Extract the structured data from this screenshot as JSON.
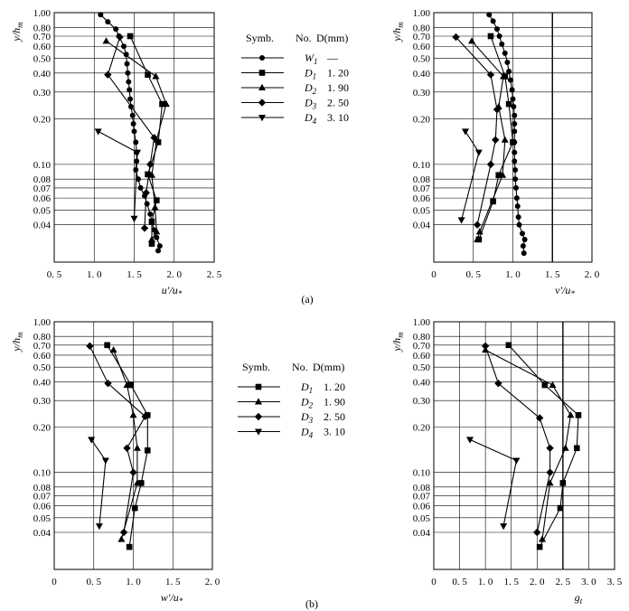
{
  "captions": {
    "a": "(a)",
    "b": "(b)"
  },
  "legend_a": {
    "header_symb": "Symb.",
    "header_no": "No.",
    "header_d": "D(mm)",
    "rows": [
      {
        "symbol": "circle",
        "name": "W",
        "sub": "1",
        "value": "—"
      },
      {
        "symbol": "square",
        "name": "D",
        "sub": "1",
        "value": "1. 20"
      },
      {
        "symbol": "triangle-up",
        "name": "D",
        "sub": "2",
        "value": "1. 90"
      },
      {
        "symbol": "diamond",
        "name": "D",
        "sub": "3",
        "value": "2. 50"
      },
      {
        "symbol": "triangle-down",
        "name": "D",
        "sub": "4",
        "value": "3. 10"
      }
    ]
  },
  "legend_b": {
    "header_symb": "Symb.",
    "header_no": "No.",
    "header_d": "D(mm)",
    "rows": [
      {
        "symbol": "square",
        "name": "D",
        "sub": "1",
        "value": "1. 20"
      },
      {
        "symbol": "triangle-up",
        "name": "D",
        "sub": "2",
        "value": "1. 90"
      },
      {
        "symbol": "diamond",
        "name": "D",
        "sub": "3",
        "value": "2. 50"
      },
      {
        "symbol": "triangle-down",
        "name": "D",
        "sub": "4",
        "value": "3. 10"
      }
    ]
  },
  "chart_data": [
    {
      "type": "line",
      "panel": "a-left",
      "xlabel": "u'/u*",
      "ylabel": "y/hm",
      "xlim": [
        0.5,
        2.5
      ],
      "xscale": "linear",
      "yscale": "log",
      "xticks": [
        "0. 5",
        "1. 0",
        "1. 5",
        "2. 0",
        "2. 5"
      ],
      "yticks": [
        "1.00",
        "0.80",
        "0.70",
        "0.60",
        "0.50",
        "0.40",
        "0.30",
        "0.20",
        "0.10",
        "0.08",
        "0.07",
        "0.06",
        "0.05",
        "0.04"
      ],
      "series": [
        {
          "name": "W1",
          "symbol": "circle",
          "points": [
            [
              1.08,
              0.97
            ],
            [
              1.17,
              0.87
            ],
            [
              1.27,
              0.78
            ],
            [
              1.31,
              0.7
            ],
            [
              1.37,
              0.6
            ],
            [
              1.4,
              0.53
            ],
            [
              1.41,
              0.46
            ],
            [
              1.42,
              0.4
            ],
            [
              1.43,
              0.35
            ],
            [
              1.44,
              0.31
            ],
            [
              1.45,
              0.27
            ],
            [
              1.46,
              0.24
            ],
            [
              1.48,
              0.21
            ],
            [
              1.49,
              0.185
            ],
            [
              1.5,
              0.165
            ],
            [
              1.52,
              0.14
            ],
            [
              1.53,
              0.12
            ],
            [
              1.53,
              0.105
            ],
            [
              1.52,
              0.092
            ],
            [
              1.55,
              0.08
            ],
            [
              1.58,
              0.07
            ],
            [
              1.63,
              0.062
            ],
            [
              1.66,
              0.055
            ],
            [
              1.7,
              0.047
            ],
            [
              1.72,
              0.042
            ],
            [
              1.75,
              0.037
            ],
            [
              1.78,
              0.033
            ],
            [
              1.82,
              0.029
            ],
            [
              1.8,
              0.027
            ]
          ]
        },
        {
          "name": "D1",
          "symbol": "square",
          "points": [
            [
              1.45,
              0.7
            ],
            [
              1.67,
              0.39
            ],
            [
              1.85,
              0.25
            ],
            [
              1.8,
              0.14
            ],
            [
              1.67,
              0.086
            ],
            [
              1.78,
              0.058
            ],
            [
              1.72,
              0.042
            ],
            [
              1.72,
              0.03
            ]
          ]
        },
        {
          "name": "D2",
          "symbol": "triangle-up",
          "points": [
            [
              1.15,
              0.65
            ],
            [
              1.77,
              0.38
            ],
            [
              1.9,
              0.25
            ],
            [
              1.78,
              0.145
            ],
            [
              1.72,
              0.085
            ],
            [
              1.76,
              0.052
            ],
            [
              1.78,
              0.036
            ],
            [
              1.72,
              0.032
            ]
          ]
        },
        {
          "name": "D3",
          "symbol": "diamond",
          "points": [
            [
              1.32,
              0.69
            ],
            [
              1.17,
              0.39
            ],
            [
              1.75,
              0.15
            ],
            [
              1.7,
              0.1
            ],
            [
              1.65,
              0.065
            ],
            [
              1.63,
              0.038
            ]
          ]
        },
        {
          "name": "D4",
          "symbol": "triangle-down",
          "points": [
            [
              1.05,
              0.165
            ],
            [
              1.54,
              0.12
            ],
            [
              1.5,
              0.044
            ]
          ]
        }
      ]
    },
    {
      "type": "line",
      "panel": "a-right",
      "xlabel": "v'/u*",
      "ylabel": "y/hm",
      "xlim": [
        0.0,
        2.0
      ],
      "xscale": "linear",
      "yscale": "log",
      "xticks": [
        "0",
        "0. 5",
        "1. 0",
        "1. 5",
        "2. 0"
      ],
      "yticks": [
        "1.00",
        "0.80",
        "0.70",
        "0.60",
        "0.50",
        "0.40",
        "0.30",
        "0.20",
        "0.10",
        "0.08",
        "0.07",
        "0.06",
        "0.05",
        "0.04"
      ],
      "series": [
        {
          "name": "W1",
          "symbol": "circle",
          "points": [
            [
              0.7,
              0.97
            ],
            [
              0.75,
              0.88
            ],
            [
              0.8,
              0.78
            ],
            [
              0.83,
              0.7
            ],
            [
              0.86,
              0.62
            ],
            [
              0.9,
              0.54
            ],
            [
              0.93,
              0.47
            ],
            [
              0.95,
              0.41
            ],
            [
              0.97,
              0.36
            ],
            [
              0.99,
              0.31
            ],
            [
              1.0,
              0.27
            ],
            [
              1.01,
              0.24
            ],
            [
              1.02,
              0.21
            ],
            [
              1.02,
              0.185
            ],
            [
              1.02,
              0.165
            ],
            [
              1.02,
              0.14
            ],
            [
              1.02,
              0.12
            ],
            [
              1.02,
              0.105
            ],
            [
              1.03,
              0.092
            ],
            [
              1.03,
              0.08
            ],
            [
              1.04,
              0.07
            ],
            [
              1.05,
              0.06
            ],
            [
              1.06,
              0.053
            ],
            [
              1.07,
              0.045
            ],
            [
              1.08,
              0.04
            ],
            [
              1.12,
              0.035
            ],
            [
              1.15,
              0.032
            ],
            [
              1.13,
              0.029
            ],
            [
              1.14,
              0.026
            ]
          ]
        },
        {
          "name": "D1",
          "symbol": "square",
          "points": [
            [
              0.72,
              0.7
            ],
            [
              0.9,
              0.38
            ],
            [
              0.95,
              0.25
            ],
            [
              1.0,
              0.14
            ],
            [
              0.82,
              0.085
            ],
            [
              0.75,
              0.057
            ],
            [
              0.57,
              0.032
            ]
          ]
        },
        {
          "name": "D2",
          "symbol": "triangle-up",
          "points": [
            [
              0.48,
              0.65
            ],
            [
              0.88,
              0.38
            ],
            [
              0.82,
              0.24
            ],
            [
              0.9,
              0.145
            ],
            [
              0.87,
              0.085
            ],
            [
              0.58,
              0.036
            ],
            [
              0.55,
              0.032
            ]
          ]
        },
        {
          "name": "D3",
          "symbol": "diamond",
          "points": [
            [
              0.28,
              0.69
            ],
            [
              0.72,
              0.39
            ],
            [
              0.8,
              0.23
            ],
            [
              0.78,
              0.145
            ],
            [
              0.72,
              0.1
            ],
            [
              0.55,
              0.04
            ]
          ]
        },
        {
          "name": "D4",
          "symbol": "triangle-down",
          "points": [
            [
              0.4,
              0.165
            ],
            [
              0.57,
              0.12
            ],
            [
              0.35,
              0.043
            ]
          ]
        }
      ]
    },
    {
      "type": "line",
      "panel": "b-left",
      "xlabel": "w'/u*",
      "ylabel": "y/hm",
      "xlim": [
        0.0,
        2.0
      ],
      "xscale": "linear",
      "yscale": "log",
      "xticks": [
        "0",
        "0. 5",
        "1. 0",
        "1. 5",
        "2. 0"
      ],
      "yticks": [
        "1.00",
        "0.80",
        "0.70",
        "0.60",
        "0.50",
        "0.40",
        "0.30",
        "0.20",
        "0.10",
        "0.08",
        "0.07",
        "0.06",
        "0.05",
        "0.04"
      ],
      "series": [
        {
          "name": "D1",
          "symbol": "square",
          "points": [
            [
              0.67,
              0.7
            ],
            [
              0.97,
              0.38
            ],
            [
              1.18,
              0.24
            ],
            [
              1.18,
              0.14
            ],
            [
              1.1,
              0.085
            ],
            [
              1.02,
              0.058
            ],
            [
              0.95,
              0.032
            ]
          ]
        },
        {
          "name": "D2",
          "symbol": "triangle-up",
          "points": [
            [
              0.75,
              0.65
            ],
            [
              0.92,
              0.38
            ],
            [
              1.0,
              0.24
            ],
            [
              1.05,
              0.145
            ],
            [
              1.05,
              0.085
            ],
            [
              0.85,
              0.036
            ]
          ]
        },
        {
          "name": "D3",
          "symbol": "diamond",
          "points": [
            [
              0.45,
              0.69
            ],
            [
              0.68,
              0.39
            ],
            [
              1.15,
              0.235
            ],
            [
              0.92,
              0.145
            ],
            [
              1.0,
              0.1
            ],
            [
              0.88,
              0.04
            ]
          ]
        },
        {
          "name": "D4",
          "symbol": "triangle-down",
          "points": [
            [
              0.47,
              0.165
            ],
            [
              0.65,
              0.12
            ],
            [
              0.57,
              0.044
            ]
          ]
        }
      ]
    },
    {
      "type": "line",
      "panel": "b-right",
      "xlabel": "gt",
      "ylabel": "y/hm",
      "xlim": [
        0.0,
        3.5
      ],
      "xscale": "linear",
      "yscale": "log",
      "xticks": [
        "0",
        "0. 5",
        "1. 0",
        "1. 5",
        "2. 0",
        "2. 5",
        "3. 0",
        "3. 5"
      ],
      "yticks": [
        "1.00",
        "0.80",
        "0.70",
        "0.60",
        "0.50",
        "0.40",
        "0.30",
        "0.20",
        "0.10",
        "0.08",
        "0.07",
        "0.06",
        "0.05",
        "0.04"
      ],
      "series": [
        {
          "name": "D1",
          "symbol": "square",
          "points": [
            [
              1.45,
              0.7
            ],
            [
              2.15,
              0.38
            ],
            [
              2.8,
              0.24
            ],
            [
              2.77,
              0.145
            ],
            [
              2.5,
              0.085
            ],
            [
              2.45,
              0.058
            ],
            [
              2.05,
              0.032
            ]
          ]
        },
        {
          "name": "D2",
          "symbol": "triangle-up",
          "points": [
            [
              1.0,
              0.65
            ],
            [
              2.3,
              0.38
            ],
            [
              2.65,
              0.24
            ],
            [
              2.55,
              0.145
            ],
            [
              2.25,
              0.085
            ],
            [
              2.1,
              0.036
            ]
          ]
        },
        {
          "name": "D3",
          "symbol": "diamond",
          "points": [
            [
              1.0,
              0.69
            ],
            [
              1.25,
              0.39
            ],
            [
              2.05,
              0.23
            ],
            [
              2.25,
              0.145
            ],
            [
              2.25,
              0.1
            ],
            [
              2.0,
              0.04
            ]
          ]
        },
        {
          "name": "D4",
          "symbol": "triangle-down",
          "points": [
            [
              0.7,
              0.165
            ],
            [
              1.6,
              0.12
            ],
            [
              1.35,
              0.044
            ]
          ]
        }
      ]
    }
  ]
}
